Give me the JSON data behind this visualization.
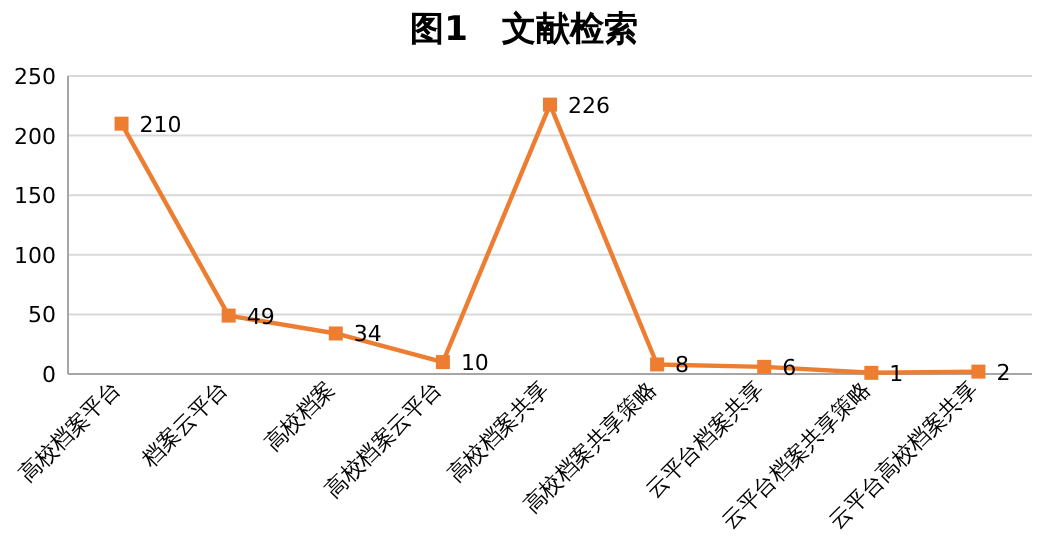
{
  "chart_data": {
    "type": "line",
    "title": "图1　文献检索",
    "categories": [
      "高校档案平台",
      "档案云平台",
      "高校档案",
      "高校档案云平台",
      "高校档案共享",
      "高校档案共享策略",
      "云平台档案共享",
      "云平台档案共享策略",
      "云平台高校档案共享"
    ],
    "values": [
      210,
      49,
      34,
      10,
      226,
      8,
      6,
      1,
      2
    ],
    "color": "#ed7d31",
    "marker": "square",
    "data_labels": true,
    "grid": "y",
    "ylim": [
      0,
      250
    ],
    "yticks": [
      0,
      50,
      100,
      150,
      200,
      250
    ]
  }
}
